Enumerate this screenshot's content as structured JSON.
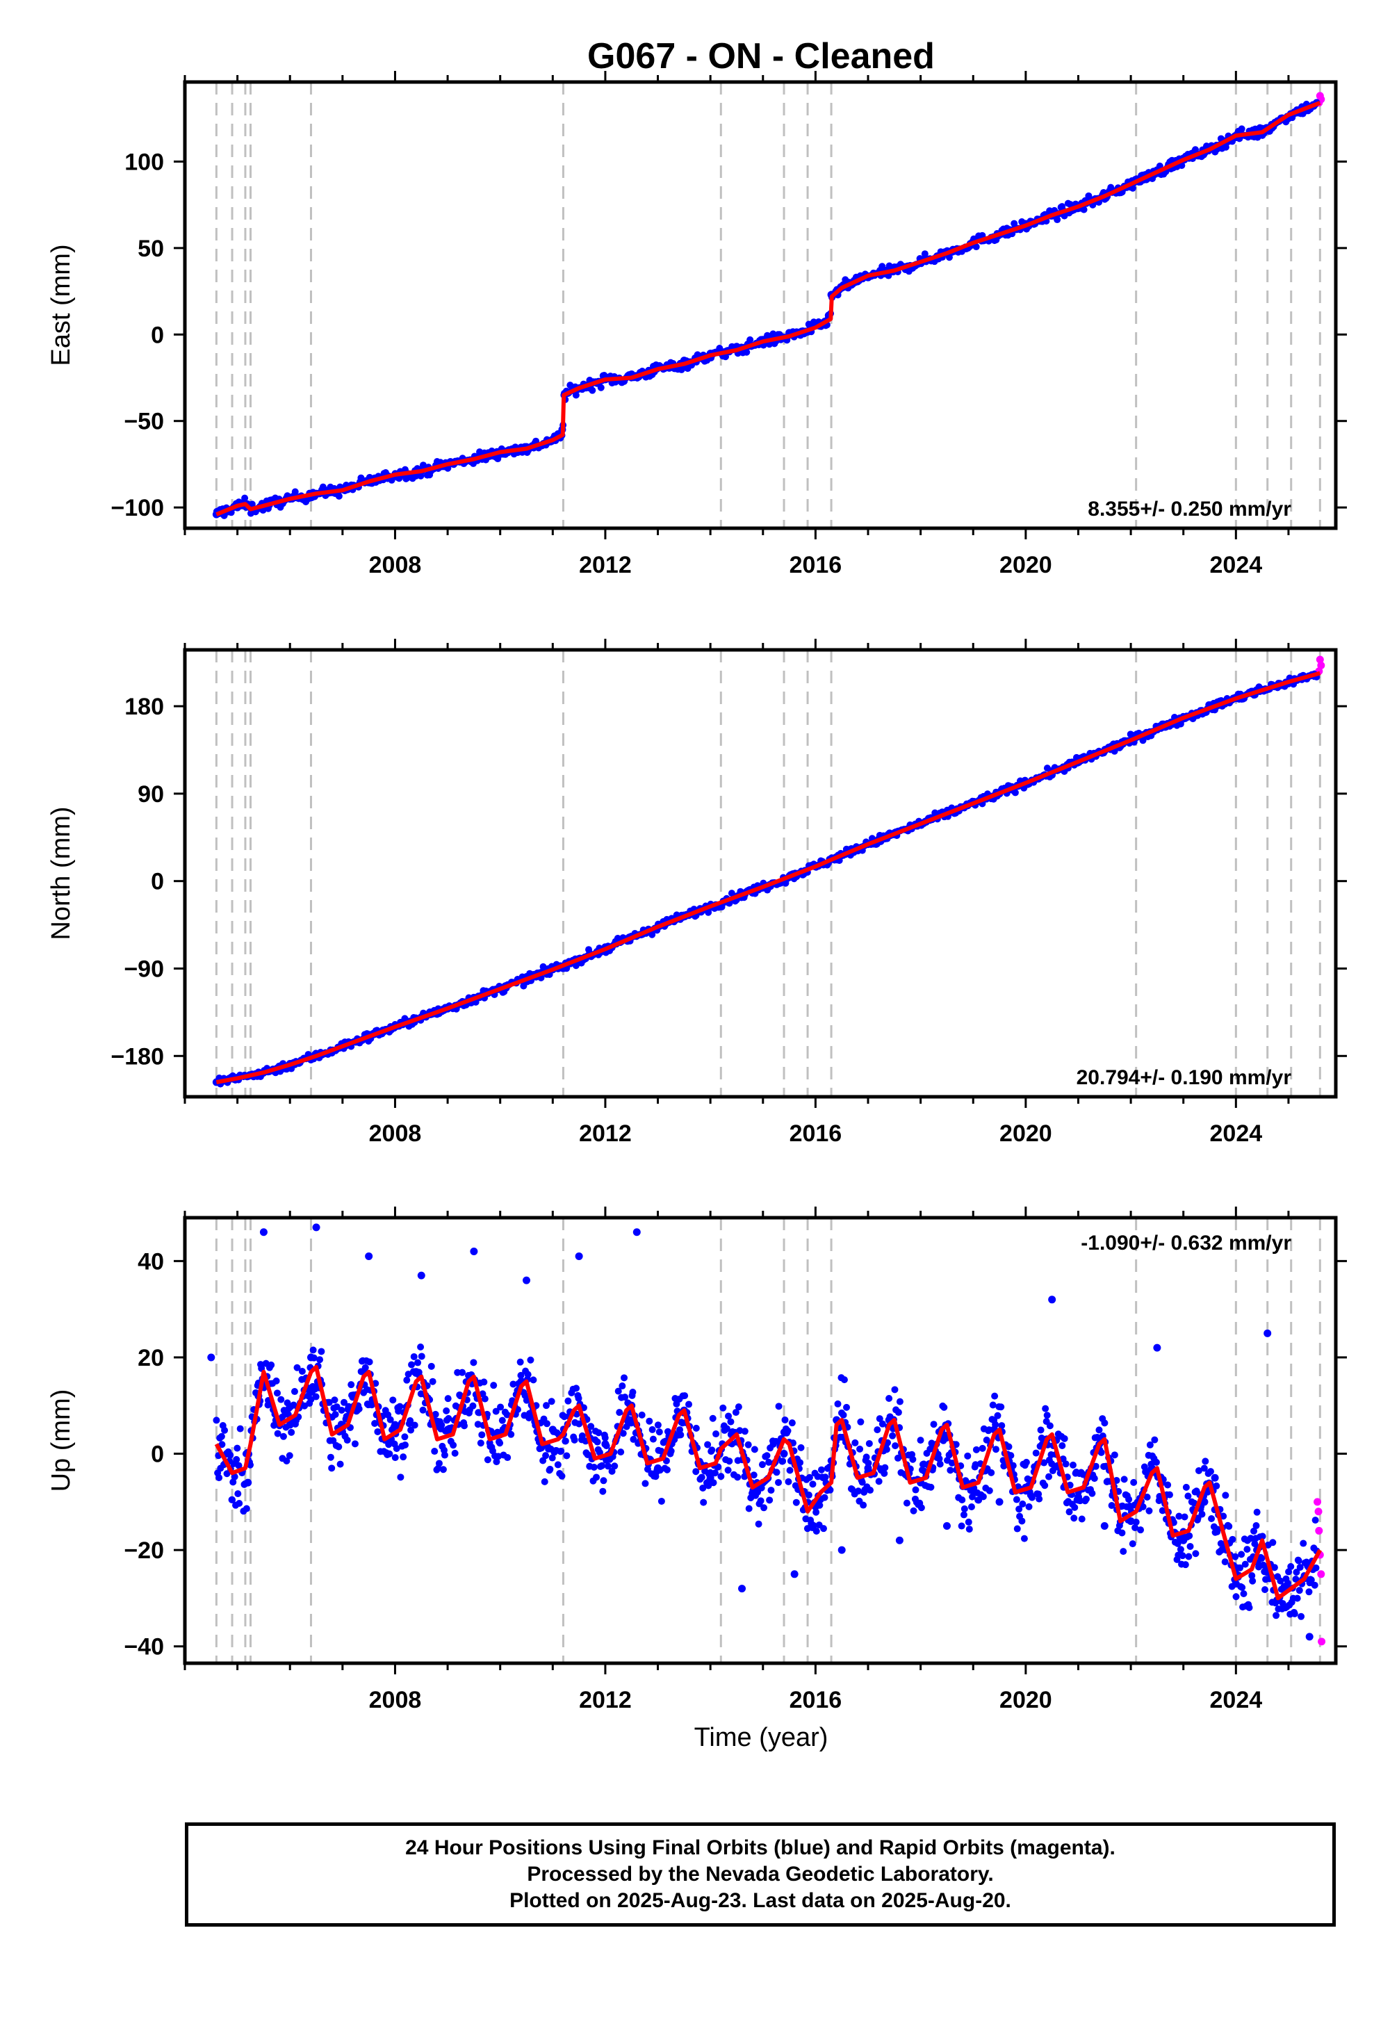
{
  "title": "G067  - ON - Cleaned",
  "xlabel": "Time (year)",
  "caption": {
    "line1": "24 Hour Positions Using Final Orbits (blue) and Rapid Orbits (magenta).",
    "line2": "Processed by the Nevada Geodetic Laboratory.",
    "line3": "Plotted on 2025-Aug-23. Last data on 2025-Aug-20."
  },
  "colors": {
    "final_orbits": "#0000ff",
    "rapid_orbits": "#ff00ff",
    "model_fit": "#ff0000",
    "event_lines": "#c0c0c0"
  },
  "chart_data": [
    {
      "type": "scatter",
      "component": "east",
      "ylabel": "East (mm)",
      "xlim": [
        2004.0,
        2025.9
      ],
      "ylim": [
        -112,
        146
      ],
      "yticks": [
        -100,
        -50,
        0,
        50,
        100
      ],
      "xticks": [
        2008,
        2012,
        2016,
        2020,
        2024
      ],
      "rate_label": "8.355+/- 0.250 mm/yr",
      "rate_position": "bottom-right",
      "grid": false,
      "event_lines_x": [
        2004.6,
        2004.9,
        2005.15,
        2005.25,
        2006.4,
        2011.2,
        2014.2,
        2015.4,
        2015.85,
        2016.3,
        2022.1,
        2024.0,
        2024.6,
        2025.05,
        2025.6
      ],
      "series": [
        {
          "marker": "final_orbits",
          "x": [
            2004.6,
            2005.0,
            2005.5,
            2006.0,
            2006.5,
            2007.0,
            2007.5,
            2008.0,
            2008.5,
            2009.0,
            2009.5,
            2010.0,
            2010.5,
            2011.0,
            2011.18,
            2011.22,
            2011.5,
            2012.0,
            2012.5,
            2013.0,
            2013.5,
            2014.0,
            2014.5,
            2015.0,
            2015.5,
            2016.0,
            2016.25,
            2016.3,
            2016.5,
            2017.0,
            2017.5,
            2018.0,
            2018.5,
            2019.0,
            2019.5,
            2020.0,
            2020.5,
            2021.0,
            2021.5,
            2022.0,
            2022.5,
            2023.0,
            2023.5,
            2024.0,
            2024.5,
            2025.0,
            2025.5
          ],
          "y": [
            -104,
            -100,
            -98,
            -95,
            -92,
            -89,
            -85,
            -81,
            -79,
            -75,
            -72,
            -68,
            -65,
            -61,
            -55,
            -35,
            -31,
            -26,
            -23,
            -19,
            -15,
            -11,
            -7,
            -3,
            1,
            6,
            11,
            23,
            27,
            33,
            38,
            43,
            48,
            53,
            58,
            64,
            70,
            74,
            80,
            87,
            95,
            101,
            108,
            114,
            119,
            126,
            133
          ]
        },
        {
          "marker": "rapid_orbits",
          "x": [
            2025.58,
            2025.6,
            2025.62
          ],
          "y": [
            134,
            138,
            136
          ]
        }
      ],
      "model": {
        "x": [
          2004.6,
          2005.0,
          2005.15,
          2005.25,
          2005.5,
          2006.0,
          2006.5,
          2007.0,
          2007.5,
          2008.0,
          2008.5,
          2009.0,
          2009.5,
          2010.0,
          2010.5,
          2011.0,
          2011.19,
          2011.21,
          2011.5,
          2012.0,
          2012.5,
          2013.0,
          2013.5,
          2014.0,
          2014.5,
          2015.0,
          2015.5,
          2016.0,
          2016.29,
          2016.31,
          2016.5,
          2017.0,
          2017.5,
          2018.0,
          2018.5,
          2019.0,
          2019.5,
          2020.0,
          2020.5,
          2021.0,
          2021.5,
          2022.0,
          2022.5,
          2023.0,
          2023.5,
          2024.0,
          2024.5,
          2025.0,
          2025.6
        ],
        "y": [
          -104,
          -99,
          -98,
          -101,
          -99,
          -95,
          -92,
          -90,
          -85,
          -81,
          -79,
          -75,
          -72,
          -68,
          -66,
          -61,
          -58,
          -35,
          -31,
          -26,
          -25,
          -20,
          -17,
          -12,
          -9,
          -4,
          -1,
          4,
          9,
          22,
          27,
          34,
          37,
          42,
          47,
          53,
          58,
          63,
          69,
          74,
          80,
          87,
          94,
          101,
          107,
          115,
          117,
          127,
          134
        ]
      }
    },
    {
      "type": "scatter",
      "component": "north",
      "ylabel": "North (mm)",
      "xlim": [
        2004.0,
        2025.9
      ],
      "ylim": [
        -222,
        238
      ],
      "yticks": [
        -180,
        -90,
        0,
        90,
        180
      ],
      "xticks": [
        2008,
        2012,
        2016,
        2020,
        2024
      ],
      "rate_label": "20.794+/- 0.190 mm/yr",
      "rate_position": "bottom-right",
      "grid": false,
      "event_lines_x": [
        2004.6,
        2004.9,
        2005.15,
        2005.25,
        2006.4,
        2011.2,
        2014.2,
        2015.4,
        2015.85,
        2016.3,
        2022.1,
        2024.0,
        2024.6,
        2025.05,
        2025.6
      ],
      "series": [
        {
          "marker": "final_orbits",
          "x": [
            2004.6,
            2005.0,
            2005.5,
            2006.0,
            2006.5,
            2007.0,
            2007.5,
            2008.0,
            2008.5,
            2009.0,
            2009.5,
            2010.0,
            2010.5,
            2011.0,
            2011.5,
            2012.0,
            2012.5,
            2013.0,
            2013.5,
            2014.0,
            2014.5,
            2015.0,
            2015.5,
            2016.0,
            2016.5,
            2017.0,
            2017.5,
            2018.0,
            2018.5,
            2019.0,
            2019.5,
            2020.0,
            2020.5,
            2021.0,
            2021.5,
            2022.0,
            2022.5,
            2023.0,
            2023.5,
            2024.0,
            2024.5,
            2025.0,
            2025.5
          ],
          "y": [
            -207,
            -203,
            -197,
            -188,
            -180,
            -170,
            -160,
            -150,
            -140,
            -130,
            -120,
            -111,
            -101,
            -91,
            -80,
            -68,
            -57,
            -47,
            -36,
            -26,
            -16,
            -6,
            4,
            15,
            27,
            38,
            48,
            58,
            70,
            80,
            90,
            101,
            112,
            123,
            134,
            145,
            156,
            168,
            178,
            188,
            197,
            205,
            213
          ]
        },
        {
          "marker": "rapid_orbits",
          "x": [
            2025.58,
            2025.6,
            2025.62
          ],
          "y": [
            216,
            228,
            222
          ]
        }
      ],
      "model": {
        "x": [
          2004.6,
          2005.0,
          2005.5,
          2006.0,
          2006.5,
          2007.0,
          2008.0,
          2009.0,
          2010.0,
          2011.0,
          2012.0,
          2013.0,
          2014.0,
          2015.0,
          2016.0,
          2016.3,
          2017.0,
          2018.0,
          2019.0,
          2020.0,
          2021.0,
          2022.0,
          2023.0,
          2024.0,
          2025.0,
          2025.6
        ],
        "y": [
          -207,
          -203,
          -197,
          -189,
          -180,
          -170,
          -150,
          -131,
          -111,
          -91,
          -70,
          -47,
          -26,
          -6,
          15,
          22,
          38,
          59,
          80,
          101,
          123,
          145,
          168,
          188,
          205,
          214
        ]
      }
    },
    {
      "type": "scatter",
      "component": "up",
      "ylabel": "Up (mm)",
      "xlim": [
        2004.0,
        2025.9
      ],
      "ylim": [
        -43.5,
        49
      ],
      "yticks": [
        -40,
        -20,
        0,
        20,
        40
      ],
      "xticks": [
        2008,
        2012,
        2016,
        2020,
        2024
      ],
      "rate_label": "-1.090+/- 0.632 mm/yr",
      "rate_position": "top-right",
      "grid": false,
      "event_lines_x": [
        2004.6,
        2004.9,
        2005.15,
        2005.25,
        2006.4,
        2011.2,
        2014.2,
        2015.4,
        2015.85,
        2016.3,
        2022.1,
        2024.0,
        2024.6,
        2025.05,
        2025.6
      ],
      "series": [
        {
          "marker": "final_orbits",
          "x": [
            2004.5,
            2004.8,
            2005.2,
            2005.4,
            2005.5,
            2006.0,
            2006.4,
            2006.5,
            2007.0,
            2007.4,
            2007.5,
            2008.0,
            2008.4,
            2008.5,
            2009.0,
            2009.4,
            2009.5,
            2010.0,
            2010.4,
            2010.5,
            2011.0,
            2011.2,
            2011.5,
            2012.0,
            2012.5,
            2012.6,
            2013.0,
            2013.5,
            2014.0,
            2014.4,
            2014.6,
            2015.0,
            2015.4,
            2015.6,
            2016.0,
            2016.4,
            2016.5,
            2017.0,
            2017.4,
            2017.6,
            2018.0,
            2018.4,
            2018.5,
            2019.0,
            2019.4,
            2019.5,
            2020.0,
            2020.4,
            2020.5,
            2021.0,
            2021.4,
            2021.5,
            2022.0,
            2022.4,
            2022.5,
            2023.0,
            2023.4,
            2023.6,
            2024.0,
            2024.4,
            2024.6,
            2025.0,
            2025.4
          ],
          "y": [
            20,
            0,
            -6,
            12,
            46,
            6,
            20,
            47,
            6,
            17,
            41,
            6,
            17,
            37,
            5,
            15,
            42,
            4,
            15,
            36,
            5,
            4,
            41,
            2,
            10,
            46,
            -3,
            9,
            -5,
            4,
            -28,
            -6,
            0,
            -25,
            -11,
            7,
            -20,
            -3,
            7,
            -18,
            -6,
            5,
            -15,
            -6,
            5,
            -10,
            -7,
            3,
            32,
            -9,
            2,
            -15,
            -14,
            -3,
            22,
            -18,
            -10,
            -5,
            -27,
            -20,
            25,
            -28,
            -38
          ]
        },
        {
          "marker": "rapid_orbits",
          "x": [
            2025.55,
            2025.57,
            2025.58,
            2025.6,
            2025.62,
            2025.63
          ],
          "y": [
            -10,
            -12,
            -16,
            -21,
            -25,
            -39
          ]
        }
      ],
      "model": {
        "x": [
          2004.6,
          2004.9,
          2005.15,
          2005.25,
          2005.5,
          2005.8,
          2006.1,
          2006.4,
          2006.5,
          2006.8,
          2007.1,
          2007.4,
          2007.5,
          2007.8,
          2008.1,
          2008.4,
          2008.5,
          2008.8,
          2009.1,
          2009.4,
          2009.5,
          2009.8,
          2010.1,
          2010.4,
          2010.5,
          2010.8,
          2011.1,
          2011.2,
          2011.4,
          2011.5,
          2011.8,
          2012.1,
          2012.4,
          2012.5,
          2012.8,
          2013.1,
          2013.4,
          2013.5,
          2013.8,
          2014.1,
          2014.2,
          2014.4,
          2014.5,
          2014.8,
          2015.1,
          2015.4,
          2015.5,
          2015.85,
          2016.1,
          2016.3,
          2016.4,
          2016.5,
          2016.8,
          2017.1,
          2017.4,
          2017.5,
          2017.8,
          2018.1,
          2018.4,
          2018.5,
          2018.8,
          2019.1,
          2019.4,
          2019.5,
          2019.8,
          2020.1,
          2020.4,
          2020.5,
          2020.8,
          2021.1,
          2021.4,
          2021.5,
          2021.8,
          2022.1,
          2022.4,
          2022.5,
          2022.8,
          2023.1,
          2023.4,
          2023.5,
          2023.8,
          2024.0,
          2024.3,
          2024.5,
          2024.8,
          2025.05,
          2025.3,
          2025.6
        ],
        "y": [
          2,
          -4,
          -3,
          2,
          17,
          6,
          8,
          17,
          18,
          4,
          6,
          16,
          17,
          3,
          5,
          15,
          16,
          3,
          4,
          15,
          16,
          3,
          4,
          14,
          15,
          2,
          3,
          4,
          9,
          10,
          -1,
          0,
          9,
          10,
          -2,
          -1,
          8,
          9,
          -3,
          -2,
          1,
          3,
          4,
          -7,
          -5,
          3,
          2,
          -12,
          -8,
          -6,
          6,
          7,
          -5,
          -4,
          6,
          7,
          -6,
          -5,
          5,
          6,
          -7,
          -6,
          4,
          5,
          -8,
          -7,
          3,
          4,
          -8,
          -7,
          2,
          3,
          -14,
          -12,
          -4,
          -3,
          -17,
          -16,
          -7,
          -6,
          -18,
          -26,
          -24,
          -18,
          -30,
          -28,
          -26,
          -20
        ]
      }
    }
  ]
}
